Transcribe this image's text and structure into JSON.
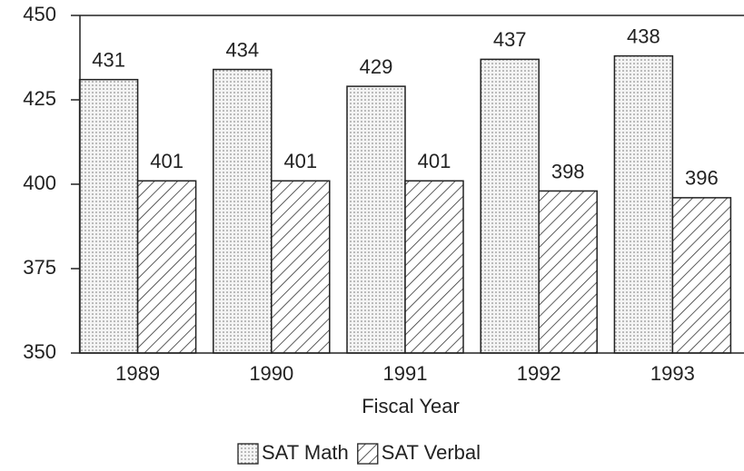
{
  "chart_data": {
    "type": "bar",
    "categories": [
      "1989",
      "1990",
      "1991",
      "1992",
      "1993"
    ],
    "series": [
      {
        "name": "SAT Math",
        "color": "#f2f2f2",
        "values": [
          431,
          434,
          429,
          437,
          438
        ]
      },
      {
        "name": "SAT Verbal",
        "color": "#ffffff",
        "values": [
          401,
          401,
          401,
          398,
          396
        ]
      }
    ],
    "xlabel": "Fiscal Year",
    "ylim": [
      350,
      450
    ],
    "yticks": [
      350,
      375,
      400,
      425,
      450
    ],
    "legend": "bottom"
  }
}
